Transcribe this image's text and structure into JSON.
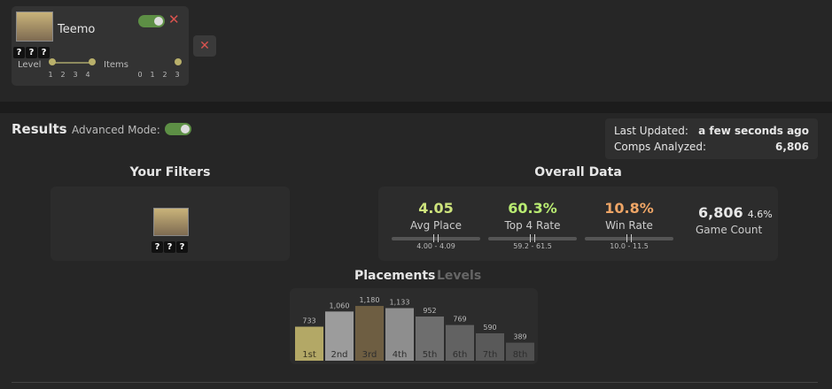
{
  "unit_card": {
    "name": "Teemo",
    "items": [
      "?",
      "?",
      "?"
    ],
    "level_label": "Level",
    "level_ticks": [
      1,
      2,
      3,
      4
    ],
    "items_label": "Items",
    "item_ticks": [
      0,
      1,
      2,
      3
    ]
  },
  "results": {
    "title": "Results",
    "advanced_mode": "Advanced Mode:",
    "last_updated_label": "Last Updated:",
    "last_updated": "a few seconds ago",
    "comps_label": "Comps Analyzed:",
    "comps": "6,806"
  },
  "filters": {
    "title": "Your Filters",
    "items": [
      "?",
      "?",
      "?"
    ]
  },
  "overall": {
    "title": "Overall Data",
    "stats": [
      {
        "value": "4.05",
        "label": "Avg Place",
        "range": "4.00 - 4.09",
        "color": "#cde37c"
      },
      {
        "value": "60.3%",
        "label": "Top 4 Rate",
        "range": "59.2 - 61.5",
        "color": "#b9ec72"
      },
      {
        "value": "10.8%",
        "label": "Win Rate",
        "range": "10.0 - 11.5",
        "color": "#eea566"
      }
    ],
    "game_count": "6,806",
    "game_pct": "4.6%",
    "game_label": "Game Count"
  },
  "tabs": [
    "Placements",
    "Levels"
  ],
  "chart_data": {
    "type": "bar",
    "categories": [
      "1st",
      "2nd",
      "3rd",
      "4th",
      "5th",
      "6th",
      "7th",
      "8th"
    ],
    "values": [
      733,
      1060,
      1180,
      1133,
      952,
      769,
      590,
      389
    ],
    "value_labels": [
      "733",
      "1,060",
      "1,180",
      "1,133",
      "952",
      "769",
      "590",
      "389"
    ],
    "colors": [
      "#b3a866",
      "#9c9c9c",
      "#6e5e42",
      "#8e8e8e",
      "#6e6e6e",
      "#626262",
      "#595959",
      "#505050"
    ]
  }
}
